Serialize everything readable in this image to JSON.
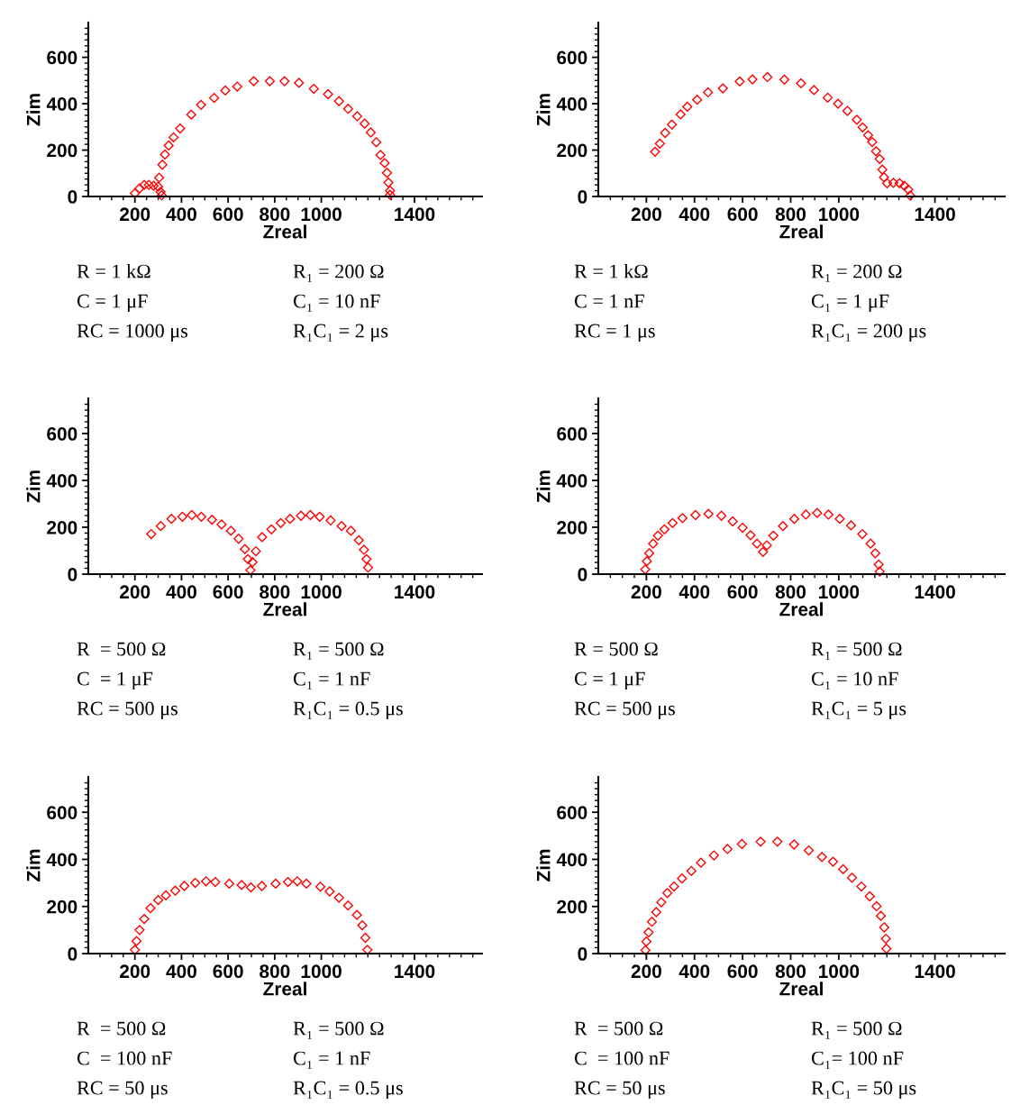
{
  "chart_data": [
    {
      "type": "scatter",
      "xlabel": "Zreal",
      "ylabel": "Zim",
      "color": "#ff0000",
      "marker": "diamond",
      "xlim": [
        0,
        1690
      ],
      "ylim": [
        0,
        750
      ],
      "xticks": [
        {
          "value": 50,
          "label": null
        },
        {
          "value": 100,
          "label": null
        },
        {
          "value": 150,
          "label": null
        },
        200,
        {
          "value": 250,
          "label": null
        },
        {
          "value": 300,
          "label": null
        },
        {
          "value": 350,
          "label": null
        },
        400,
        {
          "value": 450,
          "label": null
        },
        {
          "value": 500,
          "label": null
        },
        {
          "value": 550,
          "label": null
        },
        600,
        {
          "value": 650,
          "label": null
        },
        {
          "value": 700,
          "label": null
        },
        {
          "value": 750,
          "label": null
        },
        800,
        {
          "value": 850,
          "label": null
        },
        {
          "value": 900,
          "label": null
        },
        {
          "value": 950,
          "label": null
        },
        1000,
        {
          "value": 1050,
          "label": null
        },
        {
          "value": 1100,
          "label": null
        },
        {
          "value": 1150,
          "label": null
        },
        {
          "value": 1200,
          "label": null
        },
        {
          "value": 1250,
          "label": null
        },
        {
          "value": 1300,
          "label": null
        },
        {
          "value": 1350,
          "label": null
        },
        1400,
        {
          "value": 1450,
          "label": null
        },
        {
          "value": 1500,
          "label": null
        },
        {
          "value": 1550,
          "label": null
        },
        {
          "value": 1600,
          "label": null
        },
        {
          "value": 1650,
          "label": null
        }
      ],
      "yticks": [
        0,
        {
          "value": 25,
          "label": null
        },
        {
          "value": 50,
          "label": null
        },
        {
          "value": 75,
          "label": null
        },
        {
          "value": 100,
          "label": null
        },
        {
          "value": 125,
          "label": null
        },
        {
          "value": 150,
          "label": null
        },
        {
          "value": 175,
          "label": null
        },
        200,
        {
          "value": 225,
          "label": null
        },
        {
          "value": 250,
          "label": null
        },
        {
          "value": 275,
          "label": null
        },
        {
          "value": 300,
          "label": null
        },
        {
          "value": 325,
          "label": null
        },
        {
          "value": 350,
          "label": null
        },
        {
          "value": 375,
          "label": null
        },
        400,
        {
          "value": 425,
          "label": null
        },
        {
          "value": 450,
          "label": null
        },
        {
          "value": 475,
          "label": null
        },
        {
          "value": 500,
          "label": null
        },
        {
          "value": 525,
          "label": null
        },
        {
          "value": 550,
          "label": null
        },
        {
          "value": 575,
          "label": null
        },
        600,
        {
          "value": 625,
          "label": null
        },
        {
          "value": 650,
          "label": null
        },
        {
          "value": 675,
          "label": null
        },
        {
          "value": 700,
          "label": null
        },
        {
          "value": 725,
          "label": null
        }
      ],
      "x": [
        200,
        220,
        240,
        260,
        280,
        300,
        310,
        315,
        304,
        318,
        329,
        345,
        366,
        394,
        442,
        484,
        540,
        588,
        639,
        710,
        779,
        842,
        904,
        968,
        1029,
        1076,
        1115,
        1154,
        1186,
        1212,
        1236,
        1254,
        1272,
        1282,
        1288,
        1295,
        1295
      ],
      "values": [
        14,
        35,
        50,
        50,
        46,
        42,
        20,
        5,
        81,
        137,
        181,
        220,
        255,
        293,
        353,
        395,
        425,
        457,
        474,
        497,
        497,
        497,
        490,
        464,
        441,
        411,
        378,
        346,
        314,
        276,
        234,
        179,
        144,
        102,
        60,
        25,
        7
      ],
      "annotations": [
        "R = 1 kΩ",
        "R₁ = 200 Ω",
        "C = 1 μF",
        "C₁ = 10 nF",
        "RC = 1000 μs",
        "R₁C₁ = 2 μs"
      ]
    },
    {
      "type": "scatter",
      "xlabel": "Zreal",
      "ylabel": "Zim",
      "color": "#ff0000",
      "marker": "diamond",
      "xlim": [
        0,
        1690
      ],
      "ylim": [
        0,
        750
      ],
      "xticks": [
        {
          "value": 50,
          "label": null
        },
        {
          "value": 100,
          "label": null
        },
        {
          "value": 150,
          "label": null
        },
        200,
        {
          "value": 250,
          "label": null
        },
        {
          "value": 300,
          "label": null
        },
        {
          "value": 350,
          "label": null
        },
        400,
        {
          "value": 450,
          "label": null
        },
        {
          "value": 500,
          "label": null
        },
        {
          "value": 550,
          "label": null
        },
        600,
        {
          "value": 650,
          "label": null
        },
        {
          "value": 700,
          "label": null
        },
        {
          "value": 750,
          "label": null
        },
        800,
        {
          "value": 850,
          "label": null
        },
        {
          "value": 900,
          "label": null
        },
        {
          "value": 950,
          "label": null
        },
        1000,
        {
          "value": 1050,
          "label": null
        },
        {
          "value": 1100,
          "label": null
        },
        {
          "value": 1150,
          "label": null
        },
        {
          "value": 1200,
          "label": null
        },
        {
          "value": 1250,
          "label": null
        },
        {
          "value": 1300,
          "label": null
        },
        {
          "value": 1350,
          "label": null
        },
        1400,
        {
          "value": 1450,
          "label": null
        },
        {
          "value": 1500,
          "label": null
        },
        {
          "value": 1550,
          "label": null
        },
        {
          "value": 1600,
          "label": null
        },
        {
          "value": 1650,
          "label": null
        }
      ],
      "yticks": [
        0,
        {
          "value": 25,
          "label": null
        },
        {
          "value": 50,
          "label": null
        },
        {
          "value": 75,
          "label": null
        },
        {
          "value": 100,
          "label": null
        },
        {
          "value": 125,
          "label": null
        },
        {
          "value": 150,
          "label": null
        },
        {
          "value": 175,
          "label": null
        },
        200,
        {
          "value": 225,
          "label": null
        },
        {
          "value": 250,
          "label": null
        },
        {
          "value": 275,
          "label": null
        },
        {
          "value": 300,
          "label": null
        },
        {
          "value": 325,
          "label": null
        },
        {
          "value": 350,
          "label": null
        },
        {
          "value": 375,
          "label": null
        },
        400,
        {
          "value": 425,
          "label": null
        },
        {
          "value": 450,
          "label": null
        },
        {
          "value": 475,
          "label": null
        },
        {
          "value": 500,
          "label": null
        },
        {
          "value": 525,
          "label": null
        },
        {
          "value": 550,
          "label": null
        },
        {
          "value": 575,
          "label": null
        },
        600,
        {
          "value": 625,
          "label": null
        },
        {
          "value": 650,
          "label": null
        },
        {
          "value": 675,
          "label": null
        },
        {
          "value": 700,
          "label": null
        },
        {
          "value": 725,
          "label": null
        }
      ],
      "x": [
        236,
        256,
        278,
        306,
        342,
        370,
        411,
        456,
        518,
        588,
        641,
        703,
        774,
        843,
        897,
        954,
        997,
        1036,
        1075,
        1099,
        1122,
        1139,
        1155,
        1170,
        1181,
        1188,
        1201,
        1227,
        1253,
        1273,
        1289,
        1297
      ],
      "values": [
        193,
        228,
        274,
        310,
        354,
        387,
        417,
        449,
        466,
        496,
        505,
        515,
        504,
        488,
        459,
        426,
        400,
        369,
        331,
        298,
        264,
        235,
        195,
        162,
        116,
        83,
        57,
        59,
        57,
        46,
        30,
        4
      ],
      "annotations": [
        "R = 1 kΩ",
        "R₁ = 200 Ω",
        "C = 1 nF",
        "C₁ = 1 μF",
        "RC = 1 μs",
        "R₁C₁ = 200 μs"
      ]
    },
    {
      "type": "scatter",
      "xlabel": "Zreal",
      "ylabel": "Zim",
      "color": "#ff0000",
      "marker": "diamond",
      "xlim": [
        0,
        1690
      ],
      "ylim": [
        0,
        750
      ],
      "xticks": [
        {
          "value": 50,
          "label": null
        },
        {
          "value": 100,
          "label": null
        },
        {
          "value": 150,
          "label": null
        },
        200,
        {
          "value": 250,
          "label": null
        },
        {
          "value": 300,
          "label": null
        },
        {
          "value": 350,
          "label": null
        },
        400,
        {
          "value": 450,
          "label": null
        },
        {
          "value": 500,
          "label": null
        },
        {
          "value": 550,
          "label": null
        },
        600,
        {
          "value": 650,
          "label": null
        },
        {
          "value": 700,
          "label": null
        },
        {
          "value": 750,
          "label": null
        },
        800,
        {
          "value": 850,
          "label": null
        },
        {
          "value": 900,
          "label": null
        },
        {
          "value": 950,
          "label": null
        },
        1000,
        {
          "value": 1050,
          "label": null
        },
        {
          "value": 1100,
          "label": null
        },
        {
          "value": 1150,
          "label": null
        },
        {
          "value": 1200,
          "label": null
        },
        {
          "value": 1250,
          "label": null
        },
        {
          "value": 1300,
          "label": null
        },
        {
          "value": 1350,
          "label": null
        },
        1400,
        {
          "value": 1450,
          "label": null
        },
        {
          "value": 1500,
          "label": null
        },
        {
          "value": 1550,
          "label": null
        },
        {
          "value": 1600,
          "label": null
        },
        {
          "value": 1650,
          "label": null
        }
      ],
      "yticks": [
        0,
        {
          "value": 25,
          "label": null
        },
        {
          "value": 50,
          "label": null
        },
        {
          "value": 75,
          "label": null
        },
        {
          "value": 100,
          "label": null
        },
        {
          "value": 125,
          "label": null
        },
        {
          "value": 150,
          "label": null
        },
        {
          "value": 175,
          "label": null
        },
        200,
        {
          "value": 225,
          "label": null
        },
        {
          "value": 250,
          "label": null
        },
        {
          "value": 275,
          "label": null
        },
        {
          "value": 300,
          "label": null
        },
        {
          "value": 325,
          "label": null
        },
        {
          "value": 350,
          "label": null
        },
        {
          "value": 375,
          "label": null
        },
        400,
        {
          "value": 425,
          "label": null
        },
        {
          "value": 450,
          "label": null
        },
        {
          "value": 475,
          "label": null
        },
        {
          "value": 500,
          "label": null
        },
        {
          "value": 525,
          "label": null
        },
        {
          "value": 550,
          "label": null
        },
        {
          "value": 575,
          "label": null
        },
        600,
        {
          "value": 625,
          "label": null
        },
        {
          "value": 650,
          "label": null
        },
        {
          "value": 675,
          "label": null
        },
        {
          "value": 700,
          "label": null
        },
        {
          "value": 725,
          "label": null
        }
      ],
      "x": [
        270,
        311,
        357,
        404,
        444,
        485,
        531,
        572,
        612,
        645,
        672,
        685,
        696,
        705,
        719,
        746,
        786,
        826,
        866,
        913,
        953,
        993,
        1040,
        1087,
        1127,
        1161,
        1183,
        1194,
        1201
      ],
      "values": [
        171,
        205,
        236,
        245,
        252,
        245,
        232,
        212,
        185,
        151,
        107,
        64,
        17,
        51,
        98,
        158,
        191,
        218,
        236,
        249,
        252,
        245,
        229,
        205,
        185,
        145,
        104,
        64,
        28
      ],
      "annotations": [
        "R  = 500 Ω",
        "R₁ = 500 Ω",
        "C  = 1 μF",
        "C₁ = 1 nF",
        "RC = 500 μs",
        "R₁C₁ = 0.5 μs"
      ]
    },
    {
      "type": "scatter",
      "xlabel": "Zreal",
      "ylabel": "Zim",
      "color": "#ff0000",
      "marker": "diamond",
      "xlim": [
        0,
        1690
      ],
      "ylim": [
        0,
        750
      ],
      "xticks": [
        {
          "value": 50,
          "label": null
        },
        {
          "value": 100,
          "label": null
        },
        {
          "value": 150,
          "label": null
        },
        200,
        {
          "value": 250,
          "label": null
        },
        {
          "value": 300,
          "label": null
        },
        {
          "value": 350,
          "label": null
        },
        400,
        {
          "value": 450,
          "label": null
        },
        {
          "value": 500,
          "label": null
        },
        {
          "value": 550,
          "label": null
        },
        600,
        {
          "value": 650,
          "label": null
        },
        {
          "value": 700,
          "label": null
        },
        {
          "value": 750,
          "label": null
        },
        800,
        {
          "value": 850,
          "label": null
        },
        {
          "value": 900,
          "label": null
        },
        {
          "value": 950,
          "label": null
        },
        1000,
        {
          "value": 1050,
          "label": null
        },
        {
          "value": 1100,
          "label": null
        },
        {
          "value": 1150,
          "label": null
        },
        {
          "value": 1200,
          "label": null
        },
        {
          "value": 1250,
          "label": null
        },
        {
          "value": 1300,
          "label": null
        },
        {
          "value": 1350,
          "label": null
        },
        1400,
        {
          "value": 1450,
          "label": null
        },
        {
          "value": 1500,
          "label": null
        },
        {
          "value": 1550,
          "label": null
        },
        {
          "value": 1600,
          "label": null
        },
        {
          "value": 1650,
          "label": null
        }
      ],
      "yticks": [
        0,
        {
          "value": 25,
          "label": null
        },
        {
          "value": 50,
          "label": null
        },
        {
          "value": 75,
          "label": null
        },
        {
          "value": 100,
          "label": null
        },
        {
          "value": 125,
          "label": null
        },
        {
          "value": 150,
          "label": null
        },
        {
          "value": 175,
          "label": null
        },
        200,
        {
          "value": 225,
          "label": null
        },
        {
          "value": 250,
          "label": null
        },
        {
          "value": 275,
          "label": null
        },
        {
          "value": 300,
          "label": null
        },
        {
          "value": 325,
          "label": null
        },
        {
          "value": 350,
          "label": null
        },
        {
          "value": 375,
          "label": null
        },
        400,
        {
          "value": 425,
          "label": null
        },
        {
          "value": 450,
          "label": null
        },
        {
          "value": 475,
          "label": null
        },
        {
          "value": 500,
          "label": null
        },
        {
          "value": 525,
          "label": null
        },
        {
          "value": 550,
          "label": null
        },
        {
          "value": 575,
          "label": null
        },
        600,
        {
          "value": 625,
          "label": null
        },
        {
          "value": 650,
          "label": null
        },
        {
          "value": 675,
          "label": null
        },
        {
          "value": 700,
          "label": null
        },
        {
          "value": 725,
          "label": null
        }
      ],
      "x": [
        195,
        202,
        212,
        228,
        248,
        275,
        309,
        350,
        404,
        458,
        512,
        559,
        600,
        633,
        660,
        685,
        701,
        728,
        768,
        815,
        863,
        910,
        957,
        1004,
        1051,
        1098,
        1132,
        1152,
        1166,
        1170
      ],
      "values": [
        20,
        55,
        89,
        130,
        164,
        191,
        218,
        239,
        252,
        257,
        249,
        225,
        198,
        166,
        130,
        95,
        123,
        164,
        205,
        236,
        254,
        261,
        254,
        236,
        208,
        171,
        130,
        89,
        41,
        11
      ],
      "annotations": [
        "R = 500 Ω",
        "R₁ = 500 Ω",
        "C = 1 μF",
        "C₁ = 10 nF",
        "RC = 500 μs",
        "R₁C₁ = 5 μs"
      ]
    },
    {
      "type": "scatter",
      "xlabel": "Zreal",
      "ylabel": "Zim",
      "color": "#ff0000",
      "marker": "diamond",
      "xlim": [
        0,
        1690
      ],
      "ylim": [
        0,
        750
      ],
      "xticks": [
        {
          "value": 50,
          "label": null
        },
        {
          "value": 100,
          "label": null
        },
        {
          "value": 150,
          "label": null
        },
        200,
        {
          "value": 250,
          "label": null
        },
        {
          "value": 300,
          "label": null
        },
        {
          "value": 350,
          "label": null
        },
        400,
        {
          "value": 450,
          "label": null
        },
        {
          "value": 500,
          "label": null
        },
        {
          "value": 550,
          "label": null
        },
        600,
        {
          "value": 650,
          "label": null
        },
        {
          "value": 700,
          "label": null
        },
        {
          "value": 750,
          "label": null
        },
        800,
        {
          "value": 850,
          "label": null
        },
        {
          "value": 900,
          "label": null
        },
        {
          "value": 950,
          "label": null
        },
        1000,
        {
          "value": 1050,
          "label": null
        },
        {
          "value": 1100,
          "label": null
        },
        {
          "value": 1150,
          "label": null
        },
        {
          "value": 1200,
          "label": null
        },
        {
          "value": 1250,
          "label": null
        },
        {
          "value": 1300,
          "label": null
        },
        {
          "value": 1350,
          "label": null
        },
        1400,
        {
          "value": 1450,
          "label": null
        },
        {
          "value": 1500,
          "label": null
        },
        {
          "value": 1550,
          "label": null
        },
        {
          "value": 1600,
          "label": null
        },
        {
          "value": 1650,
          "label": null
        }
      ],
      "yticks": [
        0,
        {
          "value": 25,
          "label": null
        },
        {
          "value": 50,
          "label": null
        },
        {
          "value": 75,
          "label": null
        },
        {
          "value": 100,
          "label": null
        },
        {
          "value": 125,
          "label": null
        },
        {
          "value": 150,
          "label": null
        },
        {
          "value": 175,
          "label": null
        },
        200,
        {
          "value": 225,
          "label": null
        },
        {
          "value": 250,
          "label": null
        },
        {
          "value": 275,
          "label": null
        },
        {
          "value": 300,
          "label": null
        },
        {
          "value": 325,
          "label": null
        },
        {
          "value": 350,
          "label": null
        },
        {
          "value": 375,
          "label": null
        },
        400,
        {
          "value": 425,
          "label": null
        },
        {
          "value": 450,
          "label": null
        },
        {
          "value": 475,
          "label": null
        },
        {
          "value": 500,
          "label": null
        },
        {
          "value": 525,
          "label": null
        },
        {
          "value": 550,
          "label": null
        },
        {
          "value": 575,
          "label": null
        },
        600,
        {
          "value": 625,
          "label": null
        },
        {
          "value": 650,
          "label": null
        },
        {
          "value": 675,
          "label": null
        },
        {
          "value": 700,
          "label": null
        },
        {
          "value": 725,
          "label": null
        }
      ],
      "x": [
        200,
        207,
        220,
        240,
        267,
        300,
        333,
        373,
        412,
        459,
        505,
        545,
        605,
        658,
        698,
        745,
        804,
        857,
        897,
        936,
        996,
        1036,
        1076,
        1115,
        1153,
        1176,
        1189,
        1198
      ],
      "values": [
        16,
        53,
        100,
        147,
        193,
        227,
        247,
        267,
        287,
        300,
        307,
        304,
        297,
        291,
        281,
        287,
        297,
        304,
        307,
        297,
        284,
        264,
        237,
        204,
        164,
        120,
        67,
        16
      ],
      "annotations": [
        "R  = 500 Ω",
        "R₁ = 500 Ω",
        "C  = 100 nF",
        "C₁ = 1 nF",
        "RC = 50 μs",
        "R₁C₁ = 0.5 μs"
      ]
    },
    {
      "type": "scatter",
      "xlabel": "Zreal",
      "ylabel": "Zim",
      "color": "#ff0000",
      "marker": "diamond",
      "xlim": [
        0,
        1690
      ],
      "ylim": [
        0,
        750
      ],
      "xticks": [
        {
          "value": 50,
          "label": null
        },
        {
          "value": 100,
          "label": null
        },
        {
          "value": 150,
          "label": null
        },
        200,
        {
          "value": 250,
          "label": null
        },
        {
          "value": 300,
          "label": null
        },
        {
          "value": 350,
          "label": null
        },
        400,
        {
          "value": 450,
          "label": null
        },
        {
          "value": 500,
          "label": null
        },
        {
          "value": 550,
          "label": null
        },
        600,
        {
          "value": 650,
          "label": null
        },
        {
          "value": 700,
          "label": null
        },
        {
          "value": 750,
          "label": null
        },
        800,
        {
          "value": 850,
          "label": null
        },
        {
          "value": 900,
          "label": null
        },
        {
          "value": 950,
          "label": null
        },
        1000,
        {
          "value": 1050,
          "label": null
        },
        {
          "value": 1100,
          "label": null
        },
        {
          "value": 1150,
          "label": null
        },
        {
          "value": 1200,
          "label": null
        },
        {
          "value": 1250,
          "label": null
        },
        {
          "value": 1300,
          "label": null
        },
        {
          "value": 1350,
          "label": null
        },
        1400,
        {
          "value": 1450,
          "label": null
        },
        {
          "value": 1500,
          "label": null
        },
        {
          "value": 1550,
          "label": null
        },
        {
          "value": 1600,
          "label": null
        },
        {
          "value": 1650,
          "label": null
        }
      ],
      "yticks": [
        0,
        {
          "value": 25,
          "label": null
        },
        {
          "value": 50,
          "label": null
        },
        {
          "value": 75,
          "label": null
        },
        {
          "value": 100,
          "label": null
        },
        {
          "value": 125,
          "label": null
        },
        {
          "value": 150,
          "label": null
        },
        {
          "value": 175,
          "label": null
        },
        200,
        {
          "value": 225,
          "label": null
        },
        {
          "value": 250,
          "label": null
        },
        {
          "value": 275,
          "label": null
        },
        {
          "value": 300,
          "label": null
        },
        {
          "value": 325,
          "label": null
        },
        {
          "value": 350,
          "label": null
        },
        {
          "value": 375,
          "label": null
        },
        400,
        {
          "value": 425,
          "label": null
        },
        {
          "value": 450,
          "label": null
        },
        {
          "value": 475,
          "label": null
        },
        {
          "value": 500,
          "label": null
        },
        {
          "value": 525,
          "label": null
        },
        {
          "value": 550,
          "label": null
        },
        {
          "value": 575,
          "label": null
        },
        600,
        {
          "value": 625,
          "label": null
        },
        {
          "value": 650,
          "label": null
        },
        {
          "value": 675,
          "label": null
        },
        {
          "value": 700,
          "label": null
        },
        {
          "value": 725,
          "label": null
        }
      ],
      "x": [
        196,
        200,
        209,
        223,
        241,
        262,
        287,
        315,
        348,
        387,
        427,
        481,
        537,
        597,
        675,
        745,
        814,
        875,
        930,
        976,
        1018,
        1055,
        1094,
        1129,
        1157,
        1175,
        1189,
        1196,
        1198
      ],
      "values": [
        14,
        51,
        90,
        135,
        176,
        218,
        257,
        285,
        319,
        351,
        386,
        417,
        444,
        465,
        475,
        475,
        463,
        438,
        410,
        390,
        358,
        322,
        285,
        243,
        201,
        160,
        111,
        63,
        21
      ],
      "annotations": [
        "R  = 500 Ω",
        "R₁ = 500 Ω",
        "C  = 100 nF",
        "C₁= 100 nF",
        "RC = 50 μs",
        "R₁C₁ = 50 μs"
      ]
    }
  ]
}
